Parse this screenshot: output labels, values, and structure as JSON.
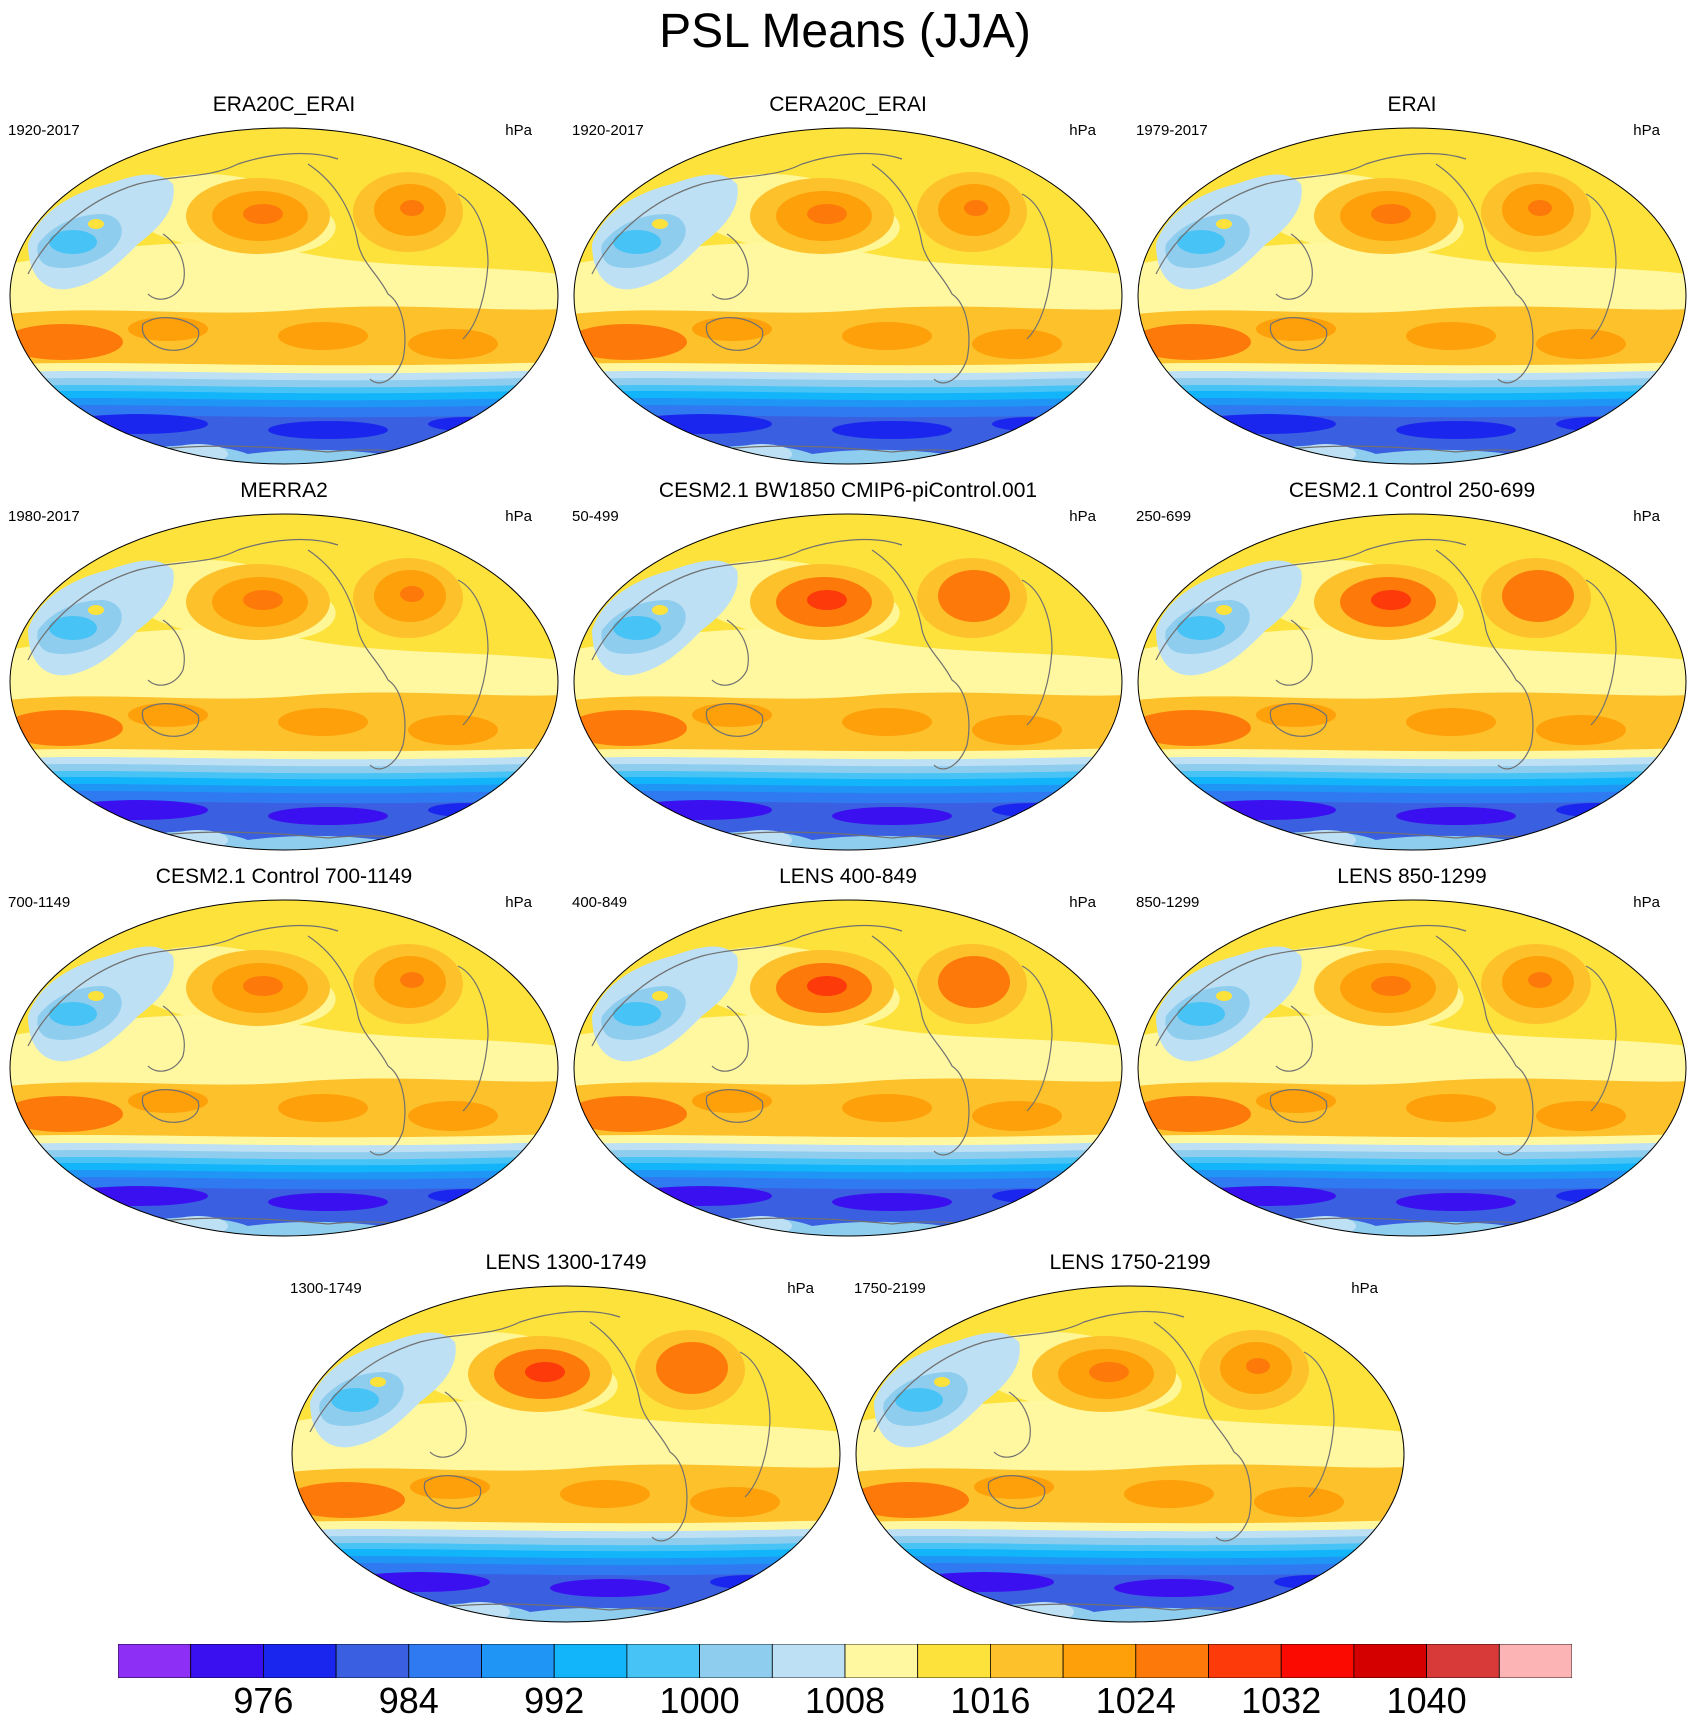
{
  "title": "PSL Means (JJA)",
  "panels": [
    {
      "name": "ERA20C_ERAI",
      "period": "1920-2017",
      "units": "hPa",
      "variant": 0
    },
    {
      "name": "CERA20C_ERAI",
      "period": "1920-2017",
      "units": "hPa",
      "variant": 0
    },
    {
      "name": "ERAI",
      "period": "1979-2017",
      "units": "hPa",
      "variant": 0
    },
    {
      "name": "MERRA2",
      "period": "1980-2017",
      "units": "hPa",
      "variant": 1
    },
    {
      "name": "CESM2.1 BW1850 CMIP6-piControl.001",
      "period": "50-499",
      "units": "hPa",
      "variant": 2
    },
    {
      "name": "CESM2.1 Control 250-699",
      "period": "250-699",
      "units": "hPa",
      "variant": 2
    },
    {
      "name": "CESM2.1 Control 700-1149",
      "period": "700-1149",
      "units": "hPa",
      "variant": 1
    },
    {
      "name": "LENS 400-849",
      "period": "400-849",
      "units": "hPa",
      "variant": 2
    },
    {
      "name": "LENS 850-1299",
      "period": "850-1299",
      "units": "hPa",
      "variant": 1
    },
    {
      "name": "LENS 1300-1749",
      "period": "1300-1749",
      "units": "hPa",
      "variant": 2
    },
    {
      "name": "LENS 1750-2199",
      "period": "1750-2199",
      "units": "hPa",
      "variant": 1
    }
  ],
  "colorbar": {
    "colors": [
      "#8d2ff5",
      "#3a10f0",
      "#1a26ee",
      "#3a5fe0",
      "#2f7af0",
      "#1f95f5",
      "#12b4fa",
      "#48c3f5",
      "#8fcdee",
      "#bde0f4",
      "#fff8a0",
      "#fde23c",
      "#fdc12c",
      "#fda00a",
      "#fd7a0a",
      "#fd3a0a",
      "#fa0a00",
      "#d40000",
      "#d83a3a",
      "#fcb4b4"
    ],
    "labels": [
      "976",
      "984",
      "992",
      "1000",
      "1008",
      "1016",
      "1024",
      "1032",
      "1040"
    ]
  }
}
